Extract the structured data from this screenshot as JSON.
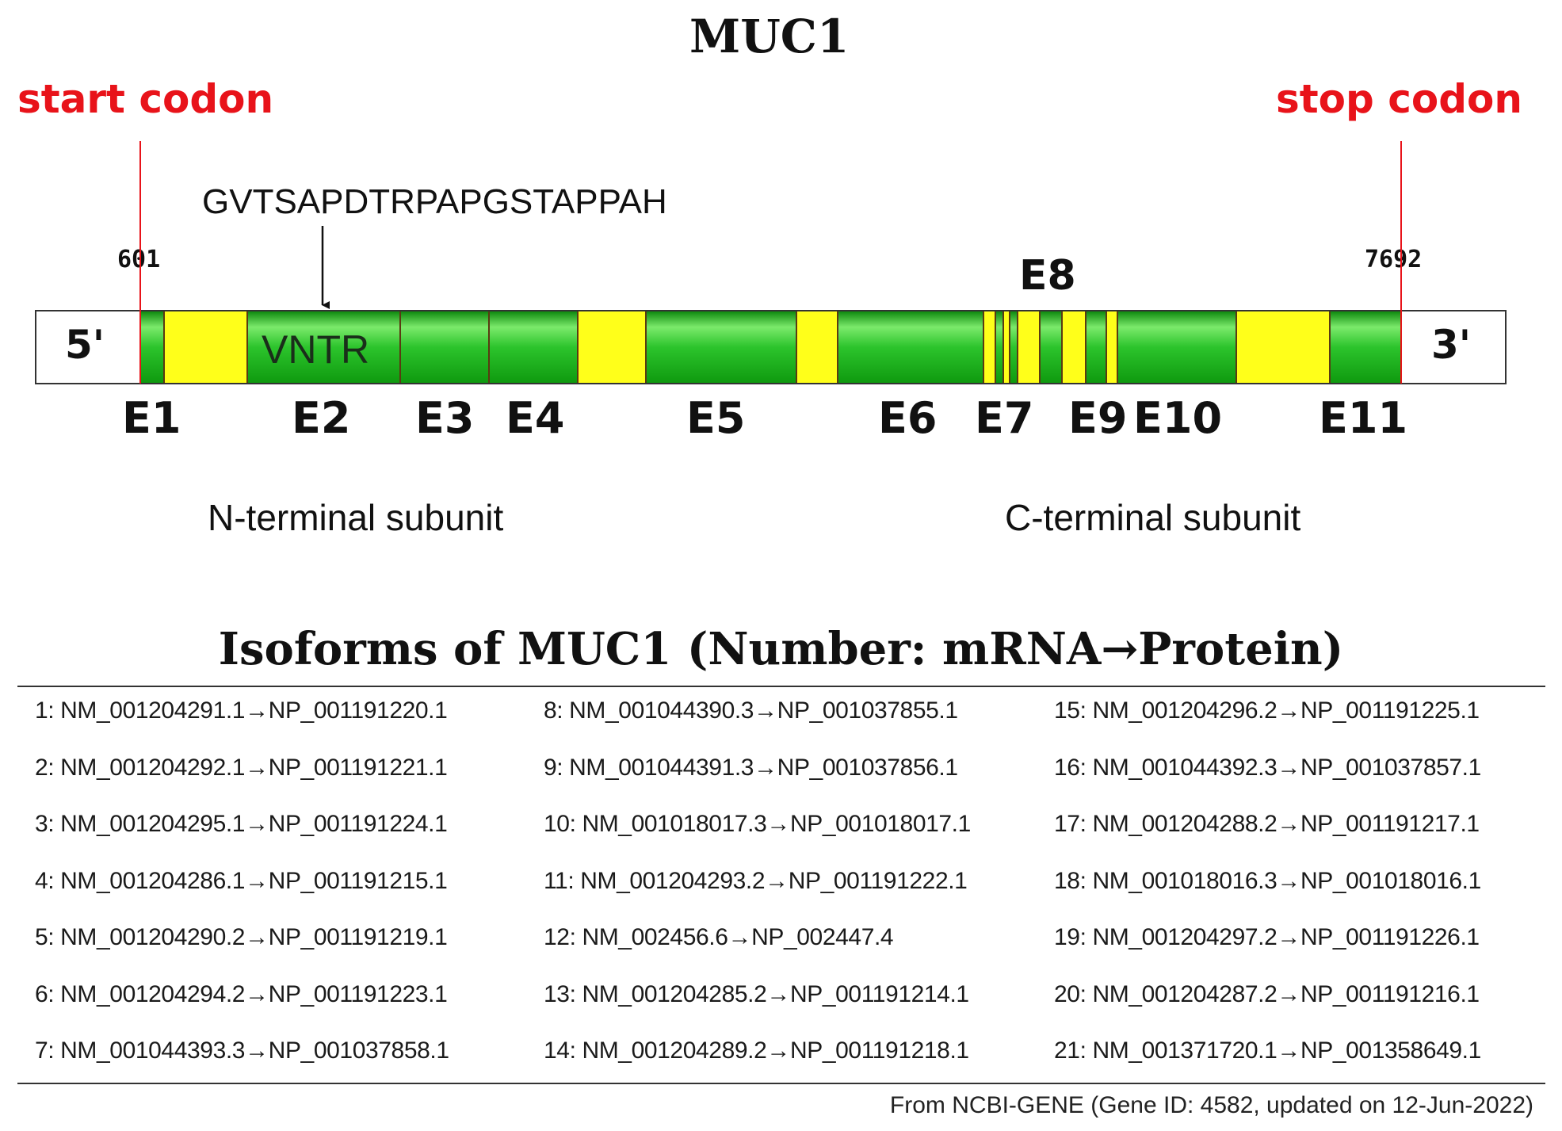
{
  "diagram": {
    "title": "MUC1",
    "start_codon_label": "start codon",
    "stop_codon_label": "stop codon",
    "start_position": "601",
    "stop_position": "7692",
    "repeat_sequence": "GVTSAPDTRPAPGSTAPPAH",
    "vntr_label": "VNTR",
    "five_prime": "5'",
    "three_prime": "3'",
    "e8_label": "E8",
    "exons": [
      "E1",
      "E2",
      "E3",
      "E4",
      "E5",
      "E6",
      "E7",
      "E9",
      "E10",
      "E11"
    ],
    "n_terminal_label": "N-terminal subunit",
    "c_terminal_label": "C-terminal subunit",
    "colors": {
      "exon_green": "#1fb81f",
      "utr_yellow": "#ffff1a",
      "codon_red": "#e8131a"
    }
  },
  "isoforms": {
    "title": "Isoforms of MUC1 (Number: mRNA→Protein)",
    "columns": [
      [
        "1: NM_001204291.1→NP_001191220.1",
        "2: NM_001204292.1→NP_001191221.1",
        "3: NM_001204295.1→NP_001191224.1",
        "4: NM_001204286.1→NP_001191215.1",
        "5: NM_001204290.2→NP_001191219.1",
        "6: NM_001204294.2→NP_001191223.1",
        "7: NM_001044393.3→NP_001037858.1"
      ],
      [
        "8: NM_001044390.3→NP_001037855.1",
        "9: NM_001044391.3→NP_001037856.1",
        "10: NM_001018017.3→NP_001018017.1",
        "11: NM_001204293.2→NP_001191222.1",
        "12: NM_002456.6→NP_002447.4",
        "13: NM_001204285.2→NP_001191214.1",
        "14: NM_001204289.2→NP_001191218.1"
      ],
      [
        "15: NM_001204296.2→NP_001191225.1",
        "16: NM_001044392.3→NP_001037857.1",
        "17: NM_001204288.2→NP_001191217.1",
        "18: NM_001018016.3→NP_001018016.1",
        "19: NM_001204297.2→NP_001191226.1",
        "20: NM_001204287.2→NP_001191216.1",
        "21: NM_001371720.1→NP_001358649.1"
      ]
    ],
    "source_note": "From NCBI-GENE (Gene ID: 4582, updated on 12-Jun-2022)"
  }
}
